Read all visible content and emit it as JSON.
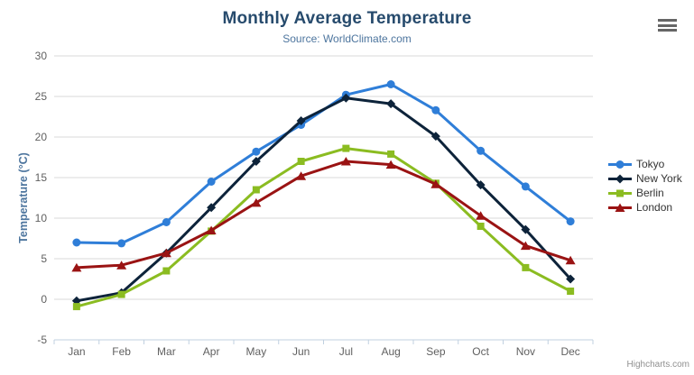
{
  "chart": {
    "title": "Monthly Average Temperature",
    "subtitle": "Source: WorldClimate.com",
    "credits": "Highcharts.com"
  },
  "chart_data": {
    "type": "line",
    "title": "Monthly Average Temperature",
    "subtitle": "Source: WorldClimate.com",
    "categories": [
      "Jan",
      "Feb",
      "Mar",
      "Apr",
      "May",
      "Jun",
      "Jul",
      "Aug",
      "Sep",
      "Oct",
      "Nov",
      "Dec"
    ],
    "xlabel": "",
    "ylabel": "Temperature (°C)",
    "ylim": [
      -5,
      30
    ],
    "ytick_step": 5,
    "ytick_labels": [
      "-5",
      "0",
      "5",
      "10",
      "15",
      "20",
      "25",
      "30"
    ],
    "grid": true,
    "legend_position": "right",
    "series": [
      {
        "name": "Tokyo",
        "color": "#2f7ed8",
        "marker": "circle",
        "values": [
          7.0,
          6.9,
          9.5,
          14.5,
          18.2,
          21.5,
          25.2,
          26.5,
          23.3,
          18.3,
          13.9,
          9.6
        ]
      },
      {
        "name": "New York",
        "color": "#0d233a",
        "marker": "diamond",
        "values": [
          -0.2,
          0.8,
          5.7,
          11.3,
          17.0,
          22.0,
          24.8,
          24.1,
          20.1,
          14.1,
          8.6,
          2.5
        ]
      },
      {
        "name": "Berlin",
        "color": "#8bbc21",
        "marker": "square",
        "values": [
          -0.9,
          0.6,
          3.5,
          8.4,
          13.5,
          17.0,
          18.6,
          17.9,
          14.3,
          9.0,
          3.9,
          1.0
        ]
      },
      {
        "name": "London",
        "color": "#9a1313",
        "marker": "triangle",
        "values": [
          3.9,
          4.2,
          5.7,
          8.5,
          11.9,
          15.2,
          17.0,
          16.6,
          14.2,
          10.3,
          6.6,
          4.8
        ]
      }
    ],
    "style": {
      "grid_color": "#d8d8d8",
      "axis_line_color": "#c0d0e0",
      "tick_label_color": "#606060",
      "axis_title_color": "#4d759e",
      "line_width": 3
    }
  }
}
